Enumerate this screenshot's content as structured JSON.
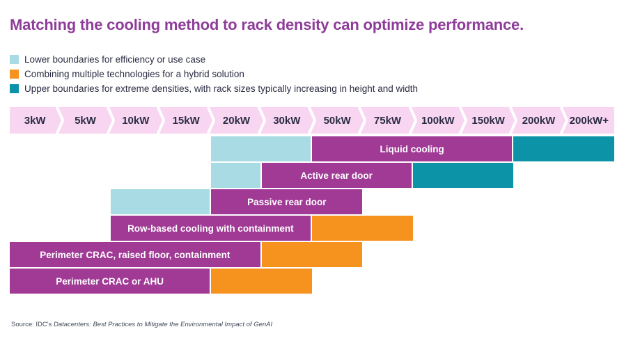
{
  "title": "Matching the cooling method to rack density can optimize performance.",
  "legend": [
    {
      "label": "Lower boundaries for efficiency or use case",
      "role": "lower"
    },
    {
      "label": "Combining multiple technologies for a hybrid solution",
      "role": "hybrid"
    },
    {
      "label": "Upper boundaries for extreme densities, with rack sizes typically increasing in height and width",
      "role": "upper"
    }
  ],
  "colors": {
    "lower": "#a8dbe3",
    "hybrid": "#f6921e",
    "upper": "#0d93a8",
    "main": "#a03a95",
    "axis_bg": "#f8d6f2",
    "title": "#8e3c99",
    "dark_text": "#2b2d42"
  },
  "chart_data": {
    "type": "bar",
    "subtype": "horizontal-range-gantt",
    "x_categories": [
      "3kW",
      "5kW",
      "10kW",
      "15kW",
      "20kW",
      "30kW",
      "50kW",
      "75kW",
      "100kW",
      "150kW",
      "200kW",
      "200kW+"
    ],
    "num_columns": 12,
    "rows": [
      {
        "name": "Liquid cooling",
        "segments": [
          {
            "role": "lower",
            "from": "20kW",
            "to": "50kW",
            "cols": [
              4,
              6
            ]
          },
          {
            "role": "main",
            "label": "Liquid cooling",
            "from": "50kW",
            "to": "200kW",
            "cols": [
              6,
              10
            ]
          },
          {
            "role": "upper",
            "from": "200kW",
            "to": "200kW+",
            "cols": [
              10,
              12
            ]
          }
        ]
      },
      {
        "name": "Active rear door",
        "segments": [
          {
            "role": "lower",
            "from": "20kW",
            "to": "30kW",
            "cols": [
              4,
              5
            ]
          },
          {
            "role": "main",
            "label": "Active rear door",
            "from": "30kW",
            "to": "100kW",
            "cols": [
              5,
              8
            ]
          },
          {
            "role": "upper",
            "from": "100kW",
            "to": "200kW",
            "cols": [
              8,
              10
            ]
          }
        ]
      },
      {
        "name": "Passive rear door",
        "segments": [
          {
            "role": "lower",
            "from": "10kW",
            "to": "20kW",
            "cols": [
              2,
              4
            ]
          },
          {
            "role": "main",
            "label": "Passive rear door",
            "from": "20kW",
            "to": "75kW",
            "cols": [
              4,
              7
            ]
          }
        ]
      },
      {
        "name": "Row-based cooling with containment",
        "segments": [
          {
            "role": "main",
            "label": "Row-based cooling with containment",
            "from": "10kW",
            "to": "50kW",
            "cols": [
              2,
              6
            ]
          },
          {
            "role": "hybrid",
            "from": "50kW",
            "to": "100kW",
            "cols": [
              6,
              8
            ]
          }
        ]
      },
      {
        "name": "Perimeter CRAC, raised floor, containment",
        "segments": [
          {
            "role": "main",
            "label": "Perimeter CRAC, raised floor, containment",
            "from": "3kW",
            "to": "30kW",
            "cols": [
              0,
              5
            ]
          },
          {
            "role": "hybrid",
            "from": "30kW",
            "to": "75kW",
            "cols": [
              5,
              7
            ]
          }
        ]
      },
      {
        "name": "Perimeter CRAC or AHU",
        "segments": [
          {
            "role": "main",
            "label": "Perimeter CRAC or AHU",
            "from": "3kW",
            "to": "20kW",
            "cols": [
              0,
              4
            ]
          },
          {
            "role": "hybrid",
            "from": "20kW",
            "to": "50kW",
            "cols": [
              4,
              6
            ]
          }
        ]
      }
    ]
  },
  "source": {
    "prefix": "Source: IDC's ",
    "document": "Datacenters: Best Practices to Mitigate the Environmental Impact of GenAI"
  }
}
